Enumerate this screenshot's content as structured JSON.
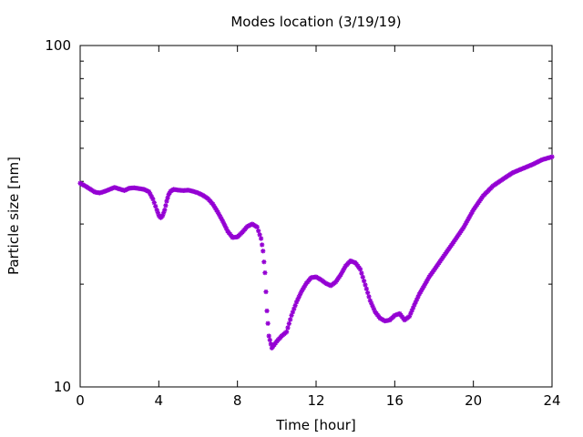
{
  "chart_data": {
    "type": "scatter",
    "title": "Modes location (3/19/19)",
    "xlabel": "Time [hour]",
    "ylabel": "Particle size [nm]",
    "xlim": [
      0,
      24
    ],
    "ylim": [
      10,
      100
    ],
    "yscale": "log",
    "grid": false,
    "xticks": [
      0,
      4,
      8,
      12,
      16,
      20,
      24
    ],
    "xtick_labels": [
      "0",
      "4",
      "8",
      "12",
      "16",
      "20",
      "24"
    ],
    "yticks": [
      10,
      100
    ],
    "ytick_labels": [
      "10",
      "100"
    ],
    "marker_color": "#9400d3",
    "series": [
      {
        "x": [
          0.0,
          0.25,
          0.5,
          0.75,
          1.0,
          1.25,
          1.5,
          1.75,
          2.0,
          2.25,
          2.5,
          2.75,
          3.0,
          3.25,
          3.5,
          3.7,
          3.9,
          4.0,
          4.1,
          4.2,
          4.3,
          4.4,
          4.5,
          4.6,
          4.75,
          5.0,
          5.25,
          5.5,
          5.75,
          6.0,
          6.25,
          6.5,
          6.75,
          7.0,
          7.25,
          7.5,
          7.75,
          8.0,
          8.25,
          8.5,
          8.75,
          9.0,
          9.2,
          9.3,
          9.4,
          9.5,
          9.6,
          9.75,
          10.0,
          10.25,
          10.5,
          10.75,
          11.0,
          11.25,
          11.5,
          11.75,
          12.0,
          12.25,
          12.5,
          12.75,
          13.0,
          13.25,
          13.5,
          13.75,
          14.0,
          14.25,
          14.5,
          14.75,
          15.0,
          15.25,
          15.5,
          15.75,
          16.0,
          16.25,
          16.5,
          16.75,
          17.0,
          17.25,
          17.5,
          17.75,
          18.0,
          18.5,
          19.0,
          19.5,
          20.0,
          20.5,
          21.0,
          21.5,
          22.0,
          22.5,
          23.0,
          23.5,
          24.0
        ],
        "y": [
          39.5,
          38.8,
          38.0,
          37.2,
          37.0,
          37.4,
          37.9,
          38.4,
          38.0,
          37.6,
          38.2,
          38.3,
          38.1,
          37.9,
          37.3,
          35.5,
          33.0,
          31.8,
          31.3,
          31.8,
          33.0,
          35.0,
          36.6,
          37.4,
          37.9,
          37.7,
          37.6,
          37.7,
          37.4,
          37.0,
          36.4,
          35.6,
          34.3,
          32.5,
          30.6,
          28.6,
          27.4,
          27.5,
          28.4,
          29.5,
          30.0,
          29.4,
          27.2,
          25.0,
          21.6,
          16.7,
          14.1,
          13.0,
          13.6,
          14.1,
          14.5,
          16.2,
          17.7,
          19.0,
          20.1,
          20.9,
          21.0,
          20.6,
          20.1,
          19.8,
          20.3,
          21.3,
          22.6,
          23.4,
          23.1,
          22.1,
          19.9,
          17.9,
          16.6,
          15.9,
          15.6,
          15.7,
          16.2,
          16.4,
          15.7,
          16.1,
          17.4,
          18.7,
          19.8,
          21.0,
          22.0,
          24.2,
          26.6,
          29.3,
          33.0,
          36.3,
          38.8,
          40.6,
          42.4,
          43.6,
          44.8,
          46.3,
          47.2
        ]
      }
    ]
  }
}
